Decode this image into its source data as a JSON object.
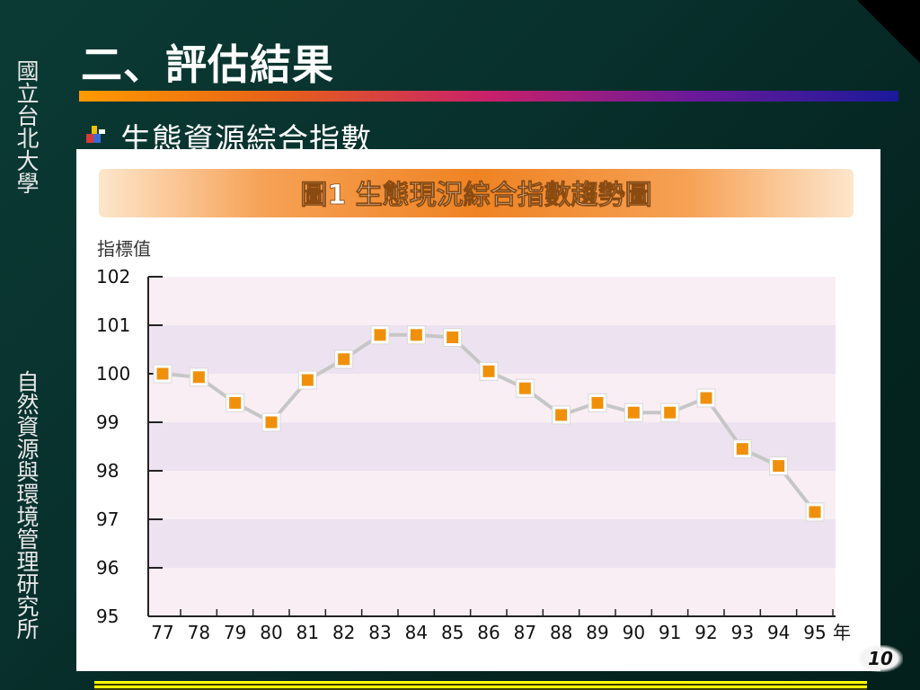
{
  "slide": {
    "title": "二、評估結果",
    "subtitle": "生態資源綜合指數",
    "vertical_top": "國立台北大學",
    "vertical_bottom": "自然資源與環境管理研究所",
    "page_number": "10",
    "bullet_icon": "bullet-blocks-icon"
  },
  "chart_data": {
    "type": "line",
    "title": "圖1 生態現況綜合指數趨勢圖",
    "ylabel": "指標值",
    "xlabel": "年",
    "categories": [
      "77",
      "78",
      "79",
      "80",
      "81",
      "82",
      "83",
      "84",
      "85",
      "86",
      "87",
      "88",
      "89",
      "90",
      "91",
      "92",
      "93",
      "94",
      "95"
    ],
    "yticks": [
      "102",
      "101",
      "100",
      "99",
      "98",
      "97",
      "96",
      "95"
    ],
    "values": [
      100.0,
      99.93,
      99.4,
      99.0,
      99.87,
      100.3,
      100.8,
      100.8,
      100.75,
      100.05,
      99.7,
      99.15,
      99.4,
      99.2,
      99.2,
      99.5,
      98.45,
      98.1,
      97.15
    ],
    "ylim": [
      95,
      102
    ],
    "grid": "alternating horizontal bands",
    "colors": {
      "marker": "#f0900a",
      "line": "#c6c6c6",
      "band_light": "#f8eef4",
      "band_dark": "#ede3f0",
      "title_bar": "#f08a2a"
    }
  }
}
